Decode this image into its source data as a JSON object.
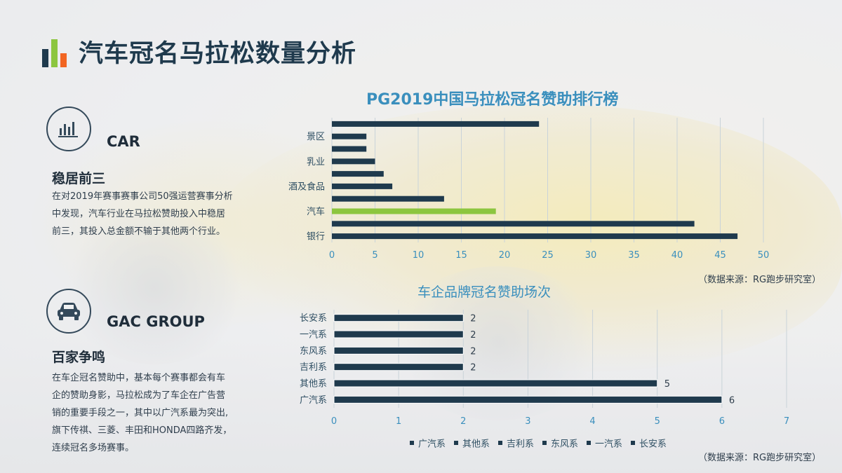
{
  "title": "汽车冠名马拉松数量分析",
  "colors": {
    "dark": "#1f3a4d",
    "highlight": "#8cc63f",
    "title_blue": "#3a8fbd",
    "tick_blue": "#3a8fbd",
    "logo_bars": [
      "#1f3a4d",
      "#8cc63f",
      "#f26522"
    ]
  },
  "left_panel": {
    "sections": [
      {
        "icon": "bar-chart-icon",
        "label": "CAR",
        "heading": "稳居前三",
        "lines": [
          "在对2019年赛事赛事公司50强运营赛事分析",
          "中发现，汽车行业在马拉松赞助投入中稳居",
          "前三，其投入总金额不输于其他两个行业。"
        ]
      },
      {
        "icon": "car-icon",
        "label": "GAC GROUP",
        "heading": "百家争鸣",
        "lines": [
          "在车企冠名赞助中，基本每个赛事都会有车",
          "企的赞助身影，马拉松成为了车企在广告营",
          "销的重要手段之一，其中以广汽系最为突出,",
          "旗下传祺、三菱、丰田和HONDA四路齐发，",
          "连续冠名多场赛事。"
        ]
      }
    ]
  },
  "chart_data": [
    {
      "type": "bar",
      "orientation": "horizontal",
      "title": "PG2019中国马拉松冠名赞助排行榜",
      "categories": [
        "银行",
        "",
        "汽车",
        "",
        "酒及食品",
        "",
        "乳业",
        "",
        "景区",
        ""
      ],
      "values": [
        47,
        42,
        19,
        13,
        7,
        6,
        5,
        4,
        4,
        24
      ],
      "highlight_category": "汽车",
      "xlim": [
        0,
        50
      ],
      "xticks": [
        "0",
        "5",
        "10",
        "15",
        "20",
        "25",
        "30",
        "35",
        "40",
        "45",
        "50"
      ],
      "grid": true,
      "source": "（数据来源：RG跑步研究室）"
    },
    {
      "type": "bar",
      "orientation": "horizontal",
      "title": "车企品牌冠名赞助场次",
      "categories": [
        "广汽系",
        "其他系",
        "吉利系",
        "东风系",
        "一汽系",
        "长安系"
      ],
      "values": [
        6,
        5,
        2,
        2,
        2,
        2
      ],
      "xlim": [
        0,
        7
      ],
      "xticks": [
        "0",
        "1",
        "2",
        "3",
        "4",
        "5",
        "6",
        "7"
      ],
      "grid": true,
      "legend_position": "bottom",
      "legend": [
        "广汽系",
        "其他系",
        "吉利系",
        "东风系",
        "一汽系",
        "长安系"
      ],
      "source": "（数据来源：RG跑步研究室）"
    }
  ]
}
